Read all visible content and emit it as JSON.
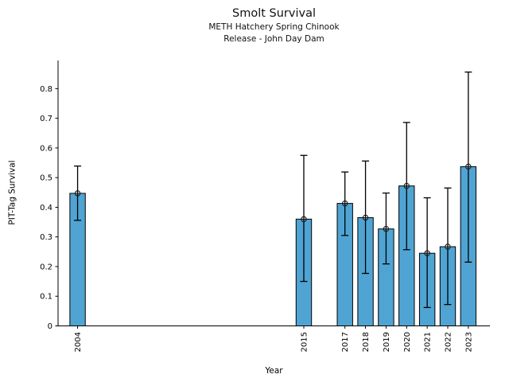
{
  "figure": {
    "title": "Smolt Survival",
    "subtitle1": "METH Hatchery Spring Chinook",
    "subtitle2": "Release - John Day Dam"
  },
  "chart_data": {
    "type": "bar",
    "title": "Smolt Survival",
    "subtitle": [
      "METH Hatchery Spring Chinook",
      "Release - John Day Dam"
    ],
    "xlabel": "Year",
    "ylabel": "PIT-Tag Survival",
    "categories": [
      2004,
      2015,
      2017,
      2018,
      2019,
      2020,
      2021,
      2022,
      2023
    ],
    "series": [
      {
        "name": "PIT-Tag Survival",
        "values": [
          0.447,
          0.36,
          0.413,
          0.365,
          0.327,
          0.472,
          0.245,
          0.267,
          0.537
        ],
        "error_low": [
          0.356,
          0.15,
          0.305,
          0.177,
          0.209,
          0.257,
          0.062,
          0.072,
          0.215
        ],
        "error_high": [
          0.539,
          0.575,
          0.519,
          0.556,
          0.448,
          0.686,
          0.432,
          0.465,
          0.856
        ]
      }
    ],
    "yticks": [
      0,
      0.1,
      0.2,
      0.3,
      0.4,
      0.5,
      0.6,
      0.7,
      0.8
    ],
    "ytick_labels": [
      "0",
      "0.1",
      "0.2",
      "0.3",
      "0.4",
      "0.5",
      "0.6",
      "0.7",
      "0.8"
    ],
    "ylim": [
      0,
      0.895
    ],
    "xlim": [
      2003.05,
      2024.05
    ],
    "bar_width_years": 0.75,
    "grid": false,
    "legend": null,
    "colors": {
      "bar_fill": "#4fa4d3",
      "bar_edge": "#000000",
      "error_bar": "#000000",
      "marker_stroke": "#1a1a1a",
      "axis": "#000000",
      "text": "#000000"
    }
  }
}
